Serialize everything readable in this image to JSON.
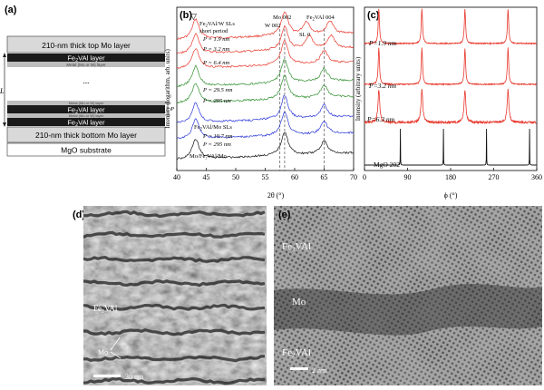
{
  "panels": {
    "a": {
      "letter": "(a)",
      "top_cap": "210-nm thick top Mo layer",
      "fe_layer": "Fe",
      "fe_layer_sub": "2",
      "fe_layer_rest": "VAl layer",
      "metal_layer": "Metal (Mo or W) layer",
      "dots": "...",
      "period_label": "L",
      "p_label": "P",
      "bottom": "210-nm thick bottom Mo layer",
      "substrate": "MgO substrate"
    },
    "b": {
      "letter": "(b)",
      "triangle": "▽",
      "w_label_1": "Fe",
      "w_label_sub": "2",
      "w_label_2": "VAl/W SLs",
      "short_period": "short period",
      "p_values_w": [
        "P = 1.9 nm",
        "P = 3.2 nm",
        "P = 6.4 nm",
        "P = 29.5 nm",
        "P = 295 nm"
      ],
      "mo_label_1": "Fe",
      "mo_label_2": "VAl/Mo SLs",
      "p_values_mo": [
        "P = 19.7 nm",
        "P = 295 nm"
      ],
      "ref_label": "Mo/Fe₂VAl/Mo",
      "peak_mo002": "Mo 002",
      "peak_w002": "W 002",
      "peak_fe004_1": "Fe",
      "peak_fe004_2": "VAl 004",
      "peak_sl0": "SL 0",
      "ylabel": "Intensity (logarithm, arb. units)",
      "xlabel": "2θ (°)",
      "xticks": [
        "40",
        "45",
        "50",
        "55",
        "60",
        "65",
        "70"
      ]
    },
    "c": {
      "letter": "(c)",
      "ylabel": "Intensity (arbitrary units)",
      "xlabel": "ϕ (°)",
      "xticks": [
        "0",
        "90",
        "180",
        "270",
        "360"
      ],
      "p_values": [
        "P=1.9 nm",
        "P=3.2 nm",
        "P=6.3 nm"
      ],
      "ref_label": "MgO 202"
    },
    "d": {
      "letter": "(d)",
      "label_fe": "Fe",
      "label_fe_sub": "2",
      "label_fe_rest": "VAl",
      "label_mo": "Mo",
      "scalebar": "30 nm"
    },
    "e": {
      "letter": "(e)",
      "label_fe": "Fe",
      "label_fe_sub": "2",
      "label_fe_rest": "VAl",
      "label_mo": "Mo",
      "label_fe_bottom": "Fe",
      "scalebar": "2 nm"
    }
  },
  "colors": {
    "red": "#e8372c",
    "green": "#2f8f2f",
    "blue": "#2936d8",
    "black": "#111111",
    "layer_dark": "#1a1a1a",
    "layer_gray": "#bdbdbd",
    "layer_light": "#d9d9d9"
  },
  "chart_data": [
    {
      "type": "line",
      "panel": "b",
      "xlabel": "2θ (°)",
      "ylabel": "Intensity (logarithm, arb. units)",
      "xlim": [
        40,
        70
      ],
      "series": [
        {
          "name": "P = 1.9 nm",
          "color": "#e8372c",
          "peaks": [
            43.2,
            58.3,
            62.0,
            66.0
          ]
        },
        {
          "name": "P = 3.2 nm",
          "color": "#e8372c",
          "peaks": [
            43.2,
            58.3,
            62.5,
            66.2
          ]
        },
        {
          "name": "P = 6.4 nm",
          "color": "#e8372c",
          "peaks": [
            43.2,
            58.3,
            65.0
          ]
        },
        {
          "name": "P = 29.5 nm",
          "color": "#2f8f2f",
          "peaks": [
            43.2,
            58.3,
            65.0
          ]
        },
        {
          "name": "P = 295 nm",
          "color": "#2f8f2f",
          "peaks": [
            43.2,
            58.3,
            65.0
          ]
        },
        {
          "name": "P = 19.7 nm",
          "color": "#2936d8",
          "peaks": [
            43.2,
            58.3,
            65.0
          ]
        },
        {
          "name": "P = 295 nm",
          "color": "#2936d8",
          "peaks": [
            43.2,
            58.3,
            65.0
          ]
        },
        {
          "name": "Mo/Fe₂VAl/Mo",
          "color": "#111111",
          "peaks": [
            43.2,
            58.3,
            65.0
          ]
        }
      ],
      "reference_lines": [
        57.5,
        58.3,
        65.0
      ]
    },
    {
      "type": "line",
      "panel": "c",
      "xlabel": "ϕ (°)",
      "ylabel": "Intensity (arbitrary units)",
      "xlim": [
        0,
        360
      ],
      "series": [
        {
          "name": "P=1.9 nm",
          "color": "#e8372c",
          "peaks": [
            30,
            120,
            210,
            300
          ]
        },
        {
          "name": "P=3.2 nm",
          "color": "#e8372c",
          "peaks": [
            30,
            120,
            210,
            300
          ]
        },
        {
          "name": "P=6.3 nm",
          "color": "#e8372c",
          "peaks": [
            30,
            120,
            210,
            300
          ]
        },
        {
          "name": "MgO 202",
          "color": "#111111",
          "peaks": [
            75,
            165,
            255,
            345
          ]
        }
      ]
    }
  ]
}
